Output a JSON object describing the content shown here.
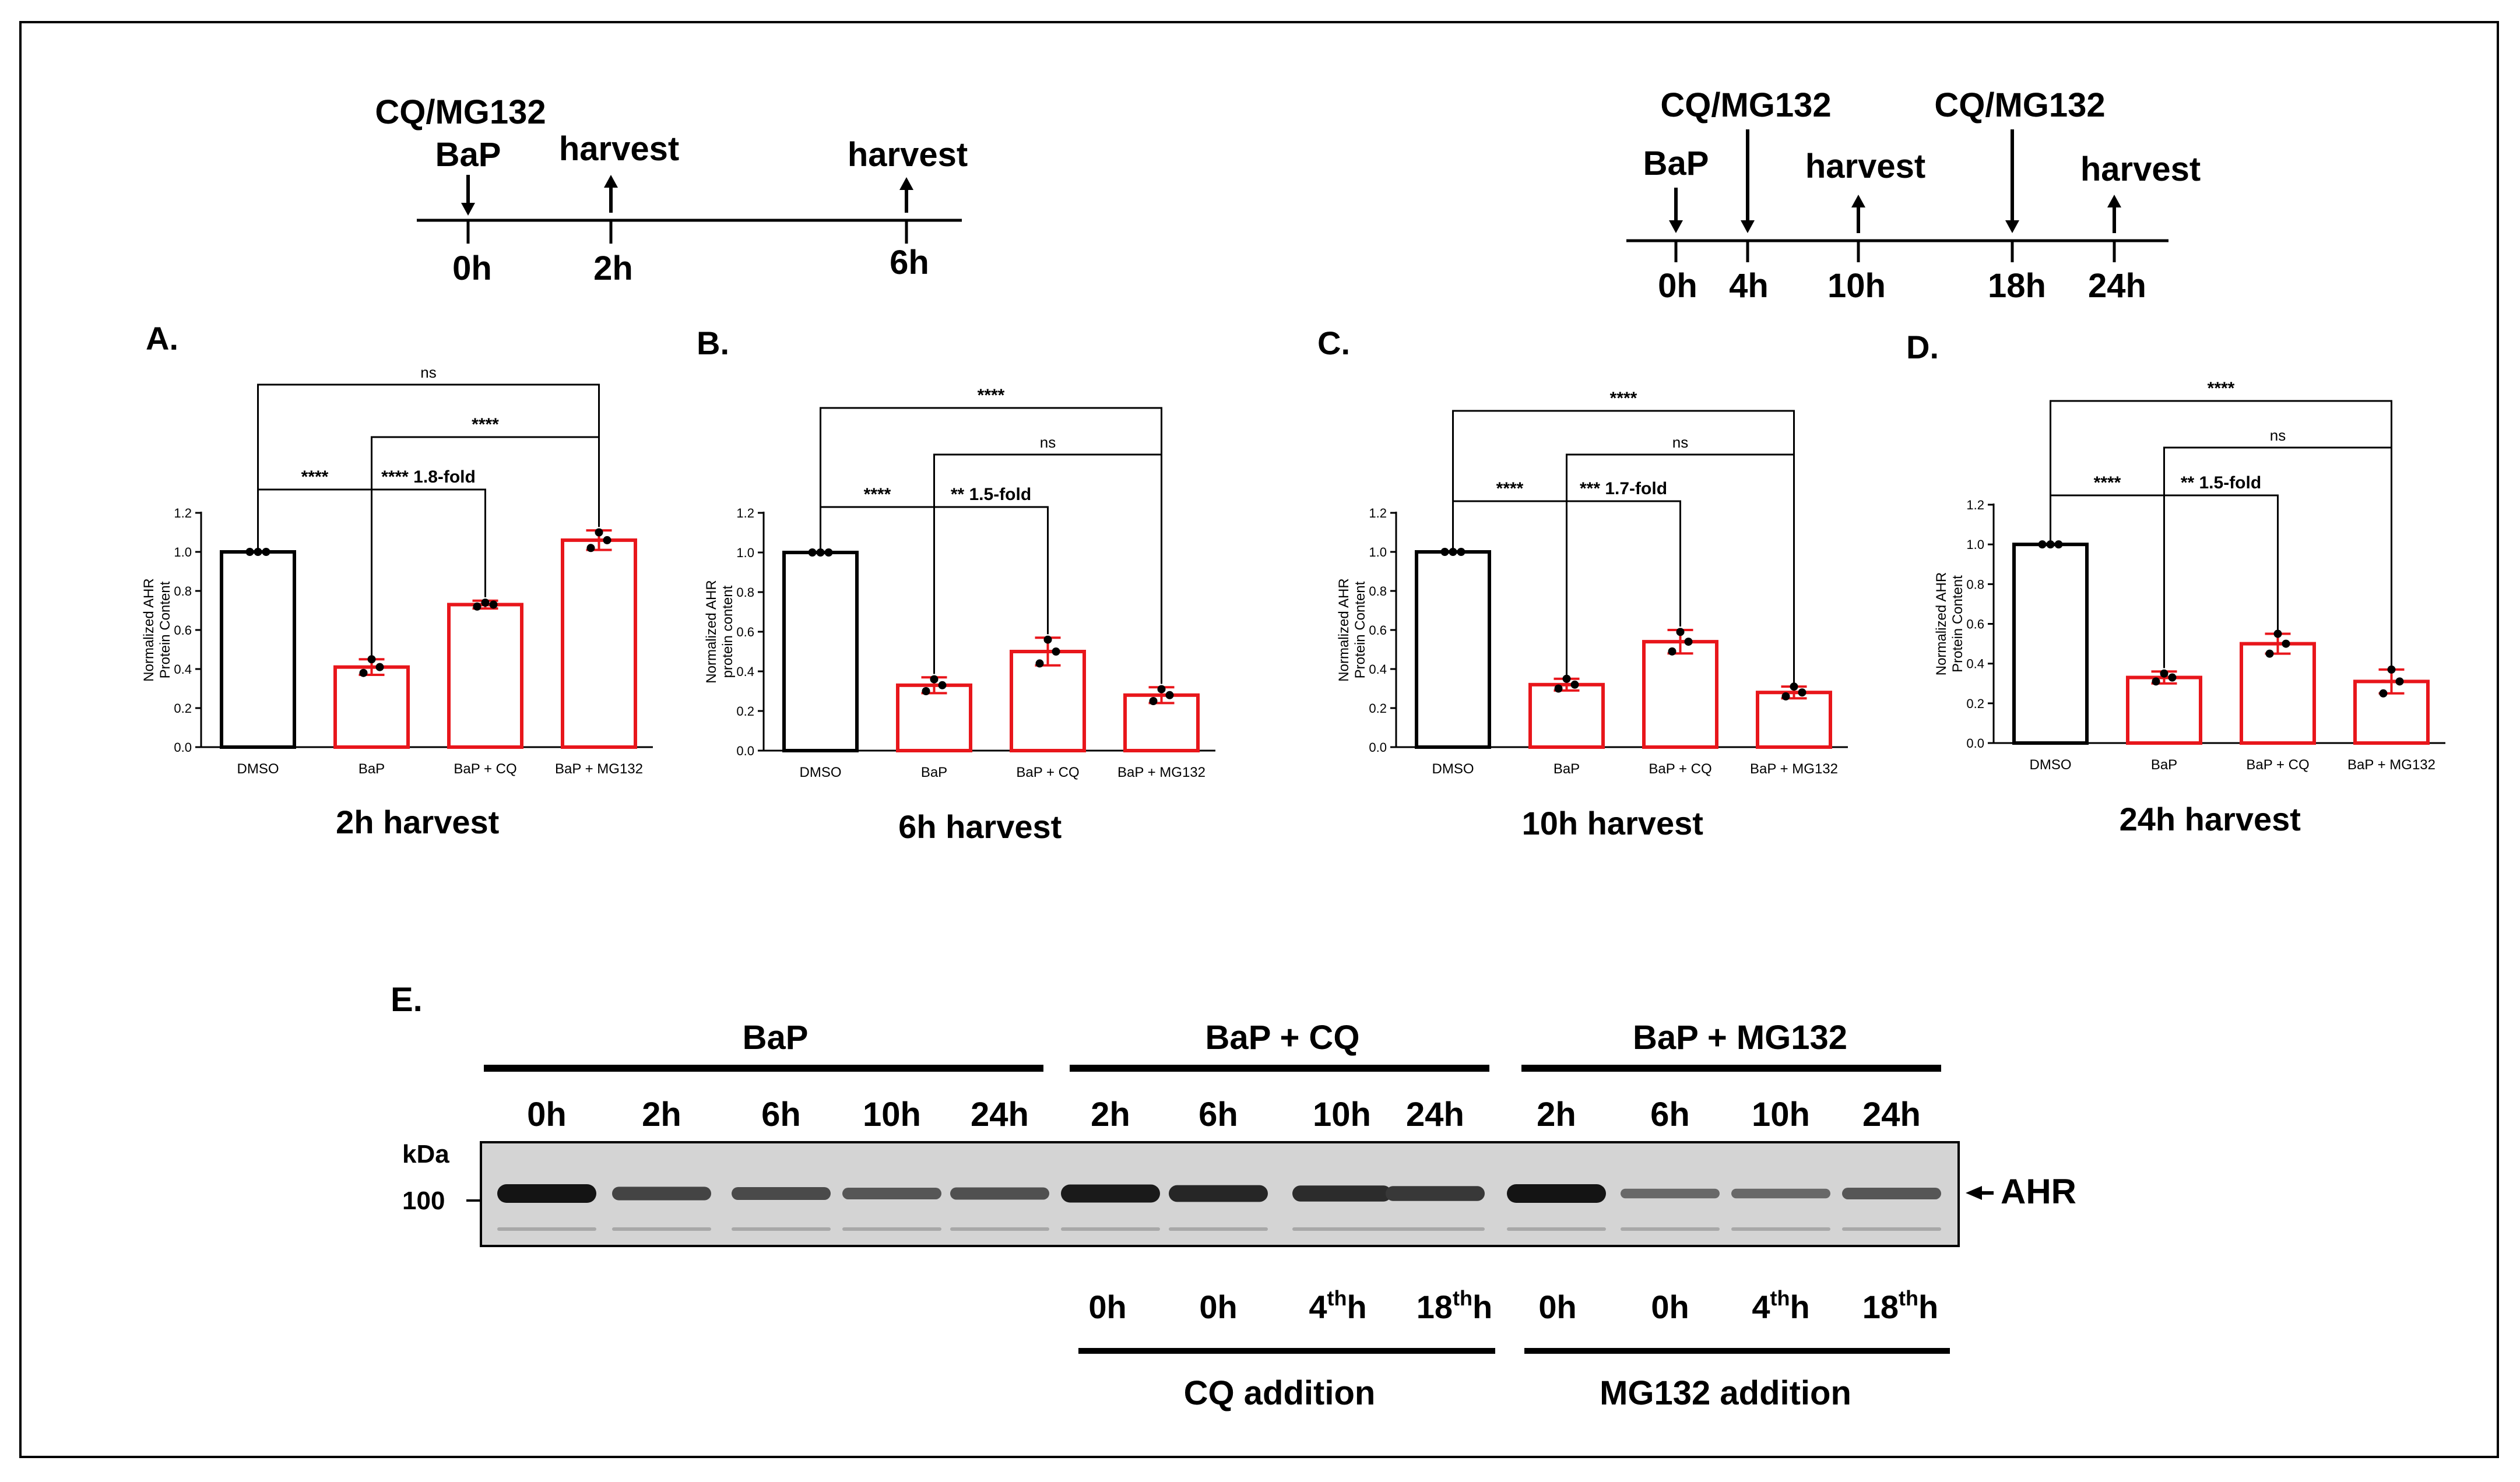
{
  "colors": {
    "black": "#000000",
    "red": "#e8161b",
    "grey": "#d4d4d4"
  },
  "timelines": {
    "left": {
      "top_label": "CQ/MG132",
      "events": [
        {
          "label": "BaP",
          "dir": "down"
        },
        {
          "label": "harvest",
          "dir": "up"
        },
        {
          "label": "harvest",
          "dir": "up"
        }
      ],
      "times": [
        "0h",
        "2h",
        "6h"
      ]
    },
    "right": {
      "events": [
        {
          "label": "BaP",
          "dir": "down"
        },
        {
          "label": "CQ/MG132",
          "dir": "down"
        },
        {
          "label": "harvest",
          "dir": "up"
        },
        {
          "label": "CQ/MG132",
          "dir": "down"
        },
        {
          "label": "harvest",
          "dir": "up"
        }
      ],
      "times": [
        "0h",
        "4h",
        "10h",
        "18h",
        "24h"
      ]
    }
  },
  "chart_data": [
    {
      "type": "bar",
      "panel": "A.",
      "title": "2h harvest",
      "ylabel": [
        "Normalized AHR",
        "Protein Content"
      ],
      "categories": [
        "DMSO",
        "BaP",
        "BaP + CQ",
        "BaP + MG132"
      ],
      "values": [
        1.0,
        0.41,
        0.73,
        1.06
      ],
      "errors": [
        0.0,
        0.04,
        0.02,
        0.05
      ],
      "points": [
        [
          1.0,
          1.0,
          1.0
        ],
        [
          0.38,
          0.45,
          0.41
        ],
        [
          0.72,
          0.74,
          0.73
        ],
        [
          1.02,
          1.1,
          1.06
        ]
      ],
      "colors": [
        "#000000",
        "#e8161b",
        "#e8161b",
        "#e8161b"
      ],
      "ylim": [
        0,
        1.2
      ],
      "yticks": [
        "0.0",
        "0.2",
        "0.4",
        "0.6",
        "0.8",
        "1.0",
        "1.2"
      ],
      "brackets": [
        {
          "from": 0,
          "to": 3,
          "level": 3,
          "label": "ns"
        },
        {
          "from": 1,
          "to": 3,
          "level": 2,
          "label": "****"
        },
        {
          "from": 0,
          "to": 1,
          "level": 1,
          "label": "****"
        },
        {
          "from": 1,
          "to": 2,
          "level": 1,
          "label": "**** 1.8-fold"
        }
      ]
    },
    {
      "type": "bar",
      "panel": "B.",
      "title": "6h harvest",
      "ylabel": [
        "Normalized AHR",
        "protein content"
      ],
      "categories": [
        "DMSO",
        "BaP",
        "BaP + CQ",
        "BaP + MG132"
      ],
      "values": [
        1.0,
        0.33,
        0.5,
        0.28
      ],
      "errors": [
        0.0,
        0.04,
        0.07,
        0.04
      ],
      "points": [
        [
          1.0,
          1.0,
          1.0
        ],
        [
          0.3,
          0.36,
          0.33
        ],
        [
          0.44,
          0.56,
          0.5
        ],
        [
          0.25,
          0.31,
          0.28
        ]
      ],
      "colors": [
        "#000000",
        "#e8161b",
        "#e8161b",
        "#e8161b"
      ],
      "ylim": [
        0,
        1.2
      ],
      "yticks": [
        "0.0",
        "0.2",
        "0.4",
        "0.6",
        "0.8",
        "1.0",
        "1.2"
      ],
      "brackets": [
        {
          "from": 0,
          "to": 3,
          "level": 3,
          "label": "****"
        },
        {
          "from": 1,
          "to": 3,
          "level": 2,
          "label": "ns"
        },
        {
          "from": 0,
          "to": 1,
          "level": 1,
          "label": "****"
        },
        {
          "from": 1,
          "to": 2,
          "level": 1,
          "label": "** 1.5-fold"
        }
      ]
    },
    {
      "type": "bar",
      "panel": "C.",
      "title": "10h harvest",
      "ylabel": [
        "Normalized AHR",
        "Protein Content"
      ],
      "categories": [
        "DMSO",
        "BaP",
        "BaP + CQ",
        "BaP + MG132"
      ],
      "values": [
        1.0,
        0.32,
        0.54,
        0.28
      ],
      "errors": [
        0.0,
        0.03,
        0.06,
        0.03
      ],
      "points": [
        [
          1.0,
          1.0,
          1.0
        ],
        [
          0.3,
          0.35,
          0.32
        ],
        [
          0.49,
          0.59,
          0.54
        ],
        [
          0.26,
          0.31,
          0.28
        ]
      ],
      "colors": [
        "#000000",
        "#e8161b",
        "#e8161b",
        "#e8161b"
      ],
      "ylim": [
        0,
        1.2
      ],
      "yticks": [
        "0.0",
        "0.2",
        "0.4",
        "0.6",
        "0.8",
        "1.0",
        "1.2"
      ],
      "brackets": [
        {
          "from": 0,
          "to": 3,
          "level": 3,
          "label": "****"
        },
        {
          "from": 1,
          "to": 3,
          "level": 2,
          "label": "ns"
        },
        {
          "from": 0,
          "to": 1,
          "level": 1,
          "label": "****"
        },
        {
          "from": 1,
          "to": 2,
          "level": 1,
          "label": "*** 1.7-fold"
        }
      ]
    },
    {
      "type": "bar",
      "panel": "D.",
      "title": "24h harvest",
      "ylabel": [
        "Normalized AHR",
        "Protein Content"
      ],
      "categories": [
        "DMSO",
        "BaP",
        "BaP + CQ",
        "BaP + MG132"
      ],
      "values": [
        1.0,
        0.33,
        0.5,
        0.31
      ],
      "errors": [
        0.0,
        0.03,
        0.05,
        0.06
      ],
      "points": [
        [
          1.0,
          1.0,
          1.0
        ],
        [
          0.31,
          0.35,
          0.33
        ],
        [
          0.45,
          0.55,
          0.5
        ],
        [
          0.25,
          0.37,
          0.31
        ]
      ],
      "colors": [
        "#000000",
        "#e8161b",
        "#e8161b",
        "#e8161b"
      ],
      "ylim": [
        0,
        1.2
      ],
      "yticks": [
        "0.0",
        "0.2",
        "0.4",
        "0.6",
        "0.8",
        "1.0",
        "1.2"
      ],
      "brackets": [
        {
          "from": 0,
          "to": 3,
          "level": 3,
          "label": "****"
        },
        {
          "from": 1,
          "to": 3,
          "level": 2,
          "label": "ns"
        },
        {
          "from": 0,
          "to": 1,
          "level": 1,
          "label": "****"
        },
        {
          "from": 1,
          "to": 2,
          "level": 1,
          "label": "** 1.5-fold"
        }
      ]
    }
  ],
  "blot": {
    "panel": "E.",
    "groups": [
      {
        "name": "BaP",
        "lanes": [
          "0h",
          "2h",
          "6h",
          "10h",
          "24h"
        ]
      },
      {
        "name": "BaP + CQ",
        "lanes": [
          "2h",
          "6h",
          "10h",
          "24h"
        ]
      },
      {
        "name": "BaP + MG132",
        "lanes": [
          "2h",
          "6h",
          "10h",
          "24h"
        ]
      }
    ],
    "band_intensity": [
      1.0,
      0.6,
      0.55,
      0.45,
      0.5,
      0.95,
      0.85,
      0.8,
      0.7,
      1.0,
      0.3,
      0.3,
      0.45
    ],
    "kda_label": "kDa",
    "marker_label": "100",
    "protein_label": "AHR",
    "addition_labels": {
      "cq": [
        {
          "base": "0h",
          "sup": ""
        },
        {
          "base": "0h",
          "sup": ""
        },
        {
          "base": "4",
          "sup": "th",
          "tail": "h"
        },
        {
          "base": "18",
          "sup": "th",
          "tail": "h"
        }
      ],
      "mg": [
        {
          "base": "0h",
          "sup": ""
        },
        {
          "base": "0h",
          "sup": ""
        },
        {
          "base": "4",
          "sup": "th",
          "tail": "h"
        },
        {
          "base": "18",
          "sup": "th",
          "tail": "h"
        }
      ]
    },
    "bottom_labels": [
      "CQ addition",
      "MG132 addition"
    ]
  }
}
